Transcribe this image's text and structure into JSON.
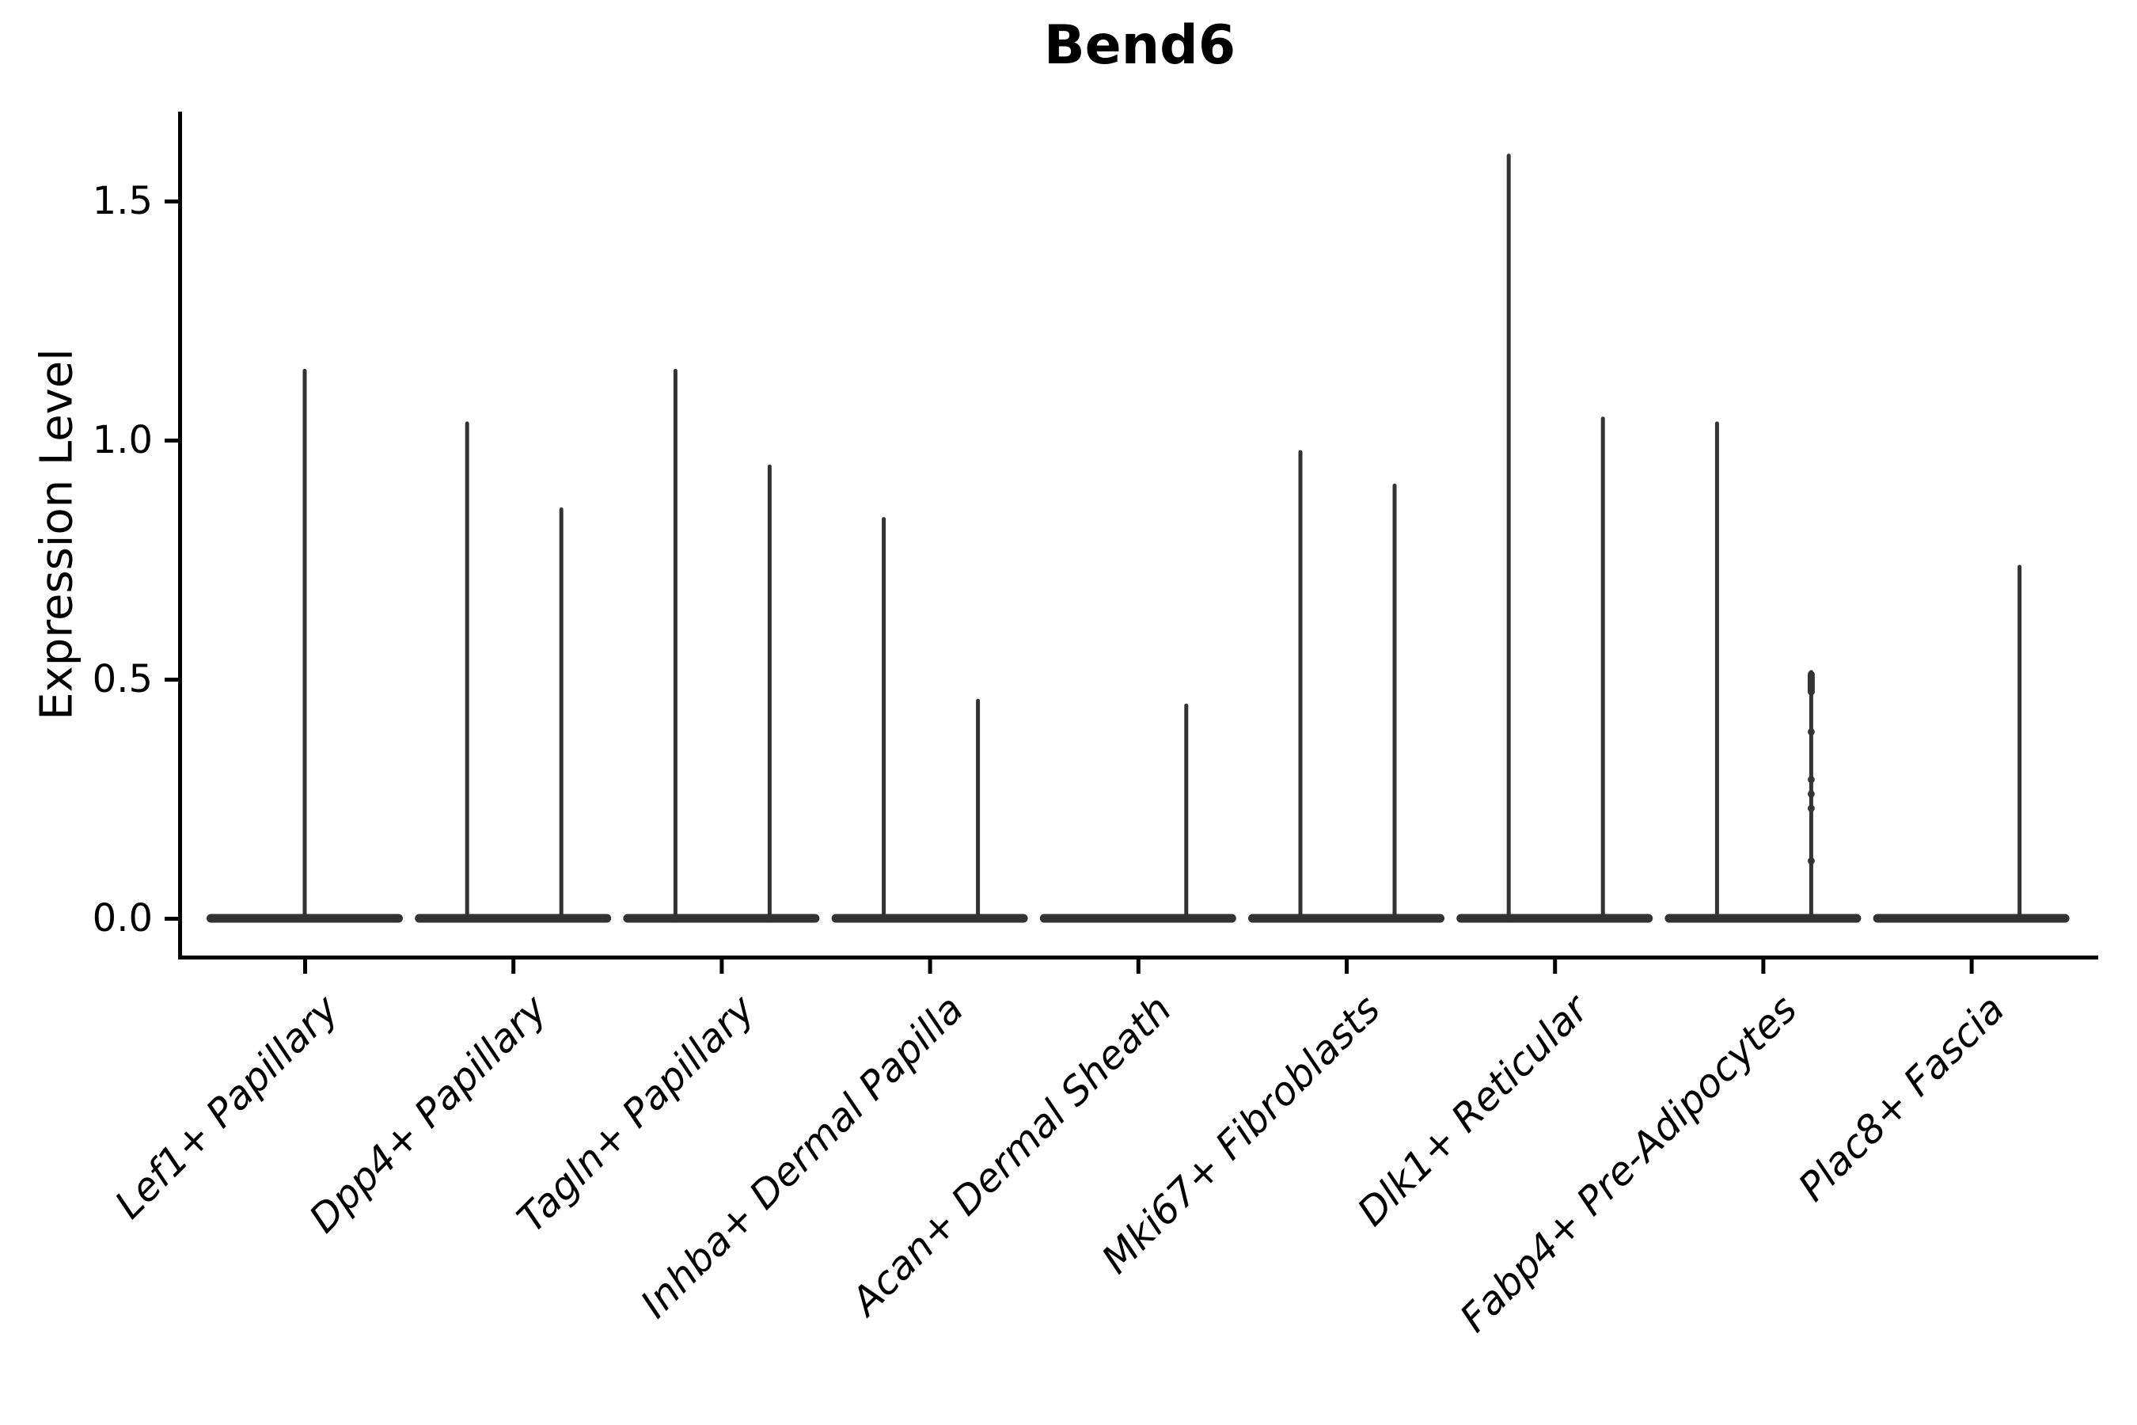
{
  "figure": {
    "title": "Bend6",
    "ylabel": "Expression Level"
  },
  "colors": {
    "axis": "#000000",
    "violin": "#333333",
    "text": "#000000",
    "background": "#ffffff"
  },
  "chart_data": {
    "type": "violin",
    "title": "Bend6",
    "xlabel": "",
    "ylabel": "Expression Level",
    "ylim": [
      -0.08,
      1.69
    ],
    "ytick_labels": [
      "0.0",
      "0.5",
      "1.0",
      "1.5"
    ],
    "ytick_values": [
      0.0,
      0.5,
      1.0,
      1.5
    ],
    "grid": false,
    "legend": "none",
    "baseline_value": 0,
    "categories": [
      "Lef1+ Papillary",
      "Dpp4+ Papillary",
      "Tagln+ Papillary",
      "Inhba+ Dermal Papilla",
      "Acan+ Dermal Sheath",
      "Mki67+ Fibroblasts",
      "Dlk1+ Reticular",
      "Fabp4+ Pre-Adipocytes",
      "Plac8+ Fascia"
    ],
    "violins": [
      {
        "category": "Lef1+ Papillary",
        "spikes": [
          {
            "pos": "center",
            "max": 1.15
          }
        ]
      },
      {
        "category": "Dpp4+ Papillary",
        "spikes": [
          {
            "pos": "left",
            "max": 1.04
          },
          {
            "pos": "right",
            "max": 0.86
          }
        ]
      },
      {
        "category": "Tagln+ Papillary",
        "spikes": [
          {
            "pos": "left",
            "max": 1.15
          },
          {
            "pos": "right",
            "max": 0.95
          }
        ]
      },
      {
        "category": "Inhba+ Dermal Papilla",
        "spikes": [
          {
            "pos": "left",
            "max": 0.84
          },
          {
            "pos": "right",
            "max": 0.46
          }
        ]
      },
      {
        "category": "Acan+ Dermal Sheath",
        "spikes": [
          {
            "pos": "right",
            "max": 0.45
          }
        ]
      },
      {
        "category": "Mki67+ Fibroblasts",
        "spikes": [
          {
            "pos": "left",
            "max": 0.98
          },
          {
            "pos": "right",
            "max": 0.91
          }
        ]
      },
      {
        "category": "Dlk1+ Reticular",
        "spikes": [
          {
            "pos": "left",
            "max": 1.6
          },
          {
            "pos": "right",
            "max": 1.05
          }
        ]
      },
      {
        "category": "Fabp4+ Pre-Adipocytes",
        "spikes": [
          {
            "pos": "left",
            "max": 1.04
          },
          {
            "pos": "right",
            "max": 0.52,
            "cap_bulge": true,
            "dots": [
              0.39,
              0.29,
              0.26,
              0.23,
              0.12
            ]
          }
        ]
      },
      {
        "category": "Plac8+ Fascia",
        "spikes": [
          {
            "pos": "right",
            "max": 0.74
          }
        ]
      }
    ]
  }
}
